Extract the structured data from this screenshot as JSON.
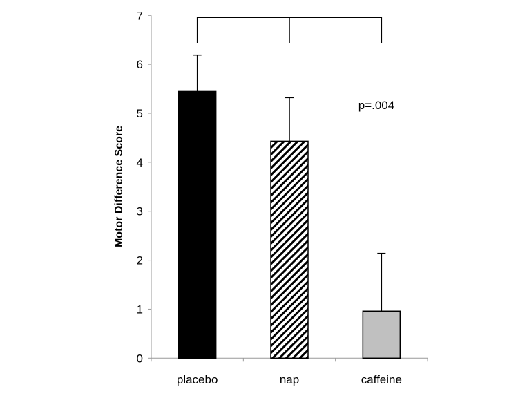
{
  "chart_data": {
    "type": "bar",
    "title": "",
    "xlabel": "",
    "ylabel": "Motor Difference Score",
    "ylim": [
      0,
      7
    ],
    "yticks": [
      0,
      1,
      2,
      3,
      4,
      5,
      6,
      7
    ],
    "categories": [
      "placebo",
      "nap",
      "caffeine"
    ],
    "values": [
      5.46,
      4.43,
      0.96
    ],
    "error_upper": [
      6.19,
      5.32,
      2.14
    ],
    "fills": [
      "solid-black",
      "diagonal-hatch",
      "solid-gray"
    ],
    "colors": {
      "placebo": "#000000",
      "nap": "#000000",
      "caffeine": "#c0c0c0"
    },
    "annotation": "p=.004",
    "significance_bracket": [
      "placebo",
      "nap",
      "caffeine"
    ],
    "grid": false
  }
}
